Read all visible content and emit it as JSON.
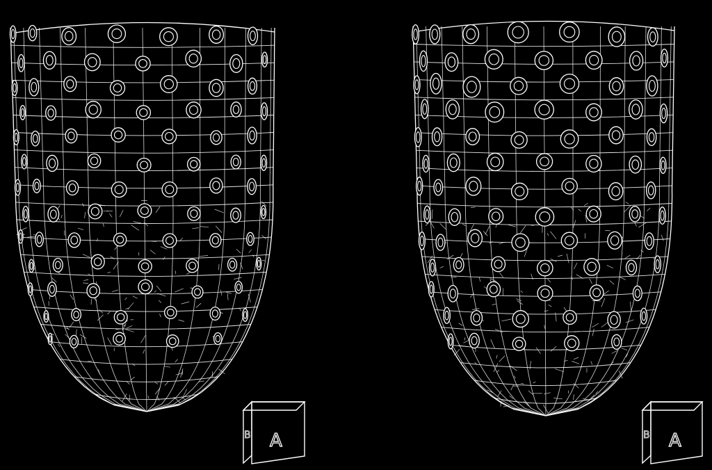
{
  "image": {
    "background_color": "#000000",
    "line_color": "#ffffff",
    "panels": [
      {
        "name": "left-heart-model",
        "cube_label": "A",
        "cube_side_label": "B"
      },
      {
        "name": "right-heart-model",
        "cube_label": "A",
        "cube_side_label": "B"
      }
    ]
  }
}
